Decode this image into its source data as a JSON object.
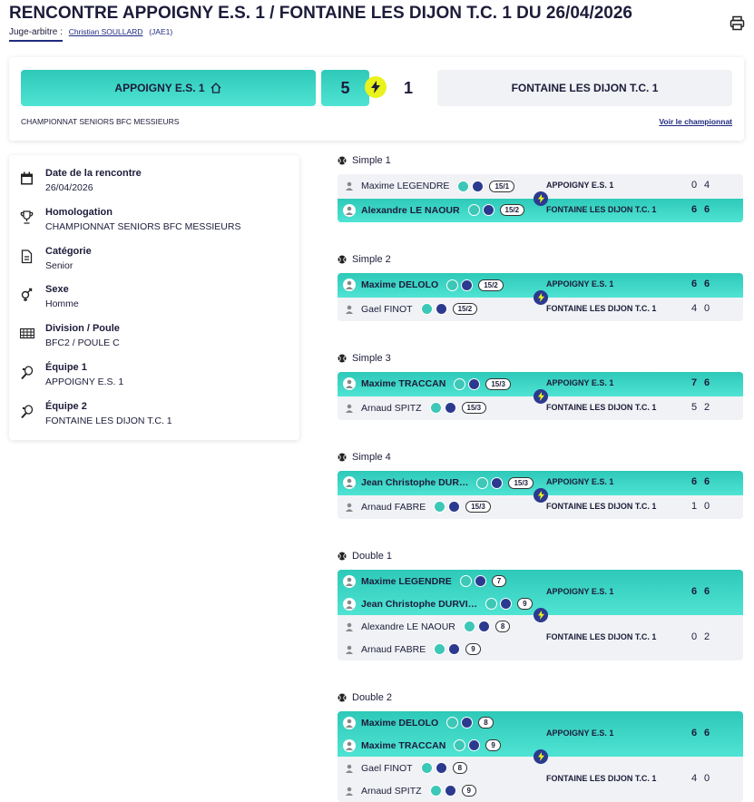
{
  "header": {
    "title": "RENCONTRE APPOIGNY E.S. 1 / FONTAINE LES DIJON T.C. 1 DU 26/04/2026",
    "referee_label": "Juge-arbitre :",
    "referee_name": "Christian SOULLARD",
    "referee_grade": "(JAE1)"
  },
  "scoreboard": {
    "home_team": "APPOIGNY E.S. 1",
    "home_score": 5,
    "away_score": 1,
    "away_team": "FONTAINE LES DIJON T.C. 1",
    "competition": "CHAMPIONNAT SENIORS BFC MESSIEURS",
    "link": "Voir le championnat"
  },
  "info": [
    {
      "label": "Date de la rencontre",
      "value": "26/04/2026"
    },
    {
      "label": "Homologation",
      "value": "CHAMPIONNAT SENIORS BFC MESSIEURS"
    },
    {
      "label": "Catégorie",
      "value": "Senior"
    },
    {
      "label": "Sexe",
      "value": "Homme"
    },
    {
      "label": "Division / Poule",
      "value": "BFC2 / POULE C"
    },
    {
      "label": "Équipe 1",
      "value": "APPOIGNY E.S. 1"
    },
    {
      "label": "Équipe 2",
      "value": "FONTAINE LES DIJON T.C. 1"
    }
  ],
  "matches": [
    {
      "title": "Simple 1",
      "teams": [
        {
          "name": "APPOIGNY E.S. 1",
          "winner": false,
          "players": [
            {
              "name": "Maxime LEGENDRE",
              "rank": "15/1"
            }
          ],
          "sets": [
            0,
            4
          ]
        },
        {
          "name": "FONTAINE LES DIJON T.C. 1",
          "winner": true,
          "players": [
            {
              "name": "Alexandre LE NAOUR",
              "rank": "15/2"
            }
          ],
          "sets": [
            6,
            6
          ]
        }
      ]
    },
    {
      "title": "Simple 2",
      "teams": [
        {
          "name": "APPOIGNY E.S. 1",
          "winner": true,
          "players": [
            {
              "name": "Maxime DELOLO",
              "rank": "15/2"
            }
          ],
          "sets": [
            6,
            6
          ]
        },
        {
          "name": "FONTAINE LES DIJON T.C. 1",
          "winner": false,
          "players": [
            {
              "name": "Gael FINOT",
              "rank": "15/2"
            }
          ],
          "sets": [
            4,
            0
          ]
        }
      ]
    },
    {
      "title": "Simple 3",
      "teams": [
        {
          "name": "APPOIGNY E.S. 1",
          "winner": true,
          "players": [
            {
              "name": "Maxime TRACCAN",
              "rank": "15/3"
            }
          ],
          "sets": [
            7,
            6
          ]
        },
        {
          "name": "FONTAINE LES DIJON T.C. 1",
          "winner": false,
          "players": [
            {
              "name": "Arnaud SPITZ",
              "rank": "15/3"
            }
          ],
          "sets": [
            5,
            2
          ]
        }
      ]
    },
    {
      "title": "Simple 4",
      "teams": [
        {
          "name": "APPOIGNY E.S. 1",
          "winner": true,
          "players": [
            {
              "name": "Jean Christophe DUR…",
              "rank": "15/3"
            }
          ],
          "sets": [
            6,
            6
          ]
        },
        {
          "name": "FONTAINE LES DIJON T.C. 1",
          "winner": false,
          "players": [
            {
              "name": "Arnaud FABRE",
              "rank": "15/3"
            }
          ],
          "sets": [
            1,
            0
          ]
        }
      ]
    },
    {
      "title": "Double 1",
      "teams": [
        {
          "name": "APPOIGNY E.S. 1",
          "winner": true,
          "players": [
            {
              "name": "Maxime LEGENDRE",
              "rank": "7"
            },
            {
              "name": "Jean Christophe DURVI…",
              "rank": "9"
            }
          ],
          "sets": [
            6,
            6
          ]
        },
        {
          "name": "FONTAINE LES DIJON T.C. 1",
          "winner": false,
          "players": [
            {
              "name": "Alexandre LE NAOUR",
              "rank": "8"
            },
            {
              "name": "Arnaud FABRE",
              "rank": "9"
            }
          ],
          "sets": [
            0,
            2
          ]
        }
      ]
    },
    {
      "title": "Double 2",
      "teams": [
        {
          "name": "APPOIGNY E.S. 1",
          "winner": true,
          "players": [
            {
              "name": "Maxime DELOLO",
              "rank": "8"
            },
            {
              "name": "Maxime TRACCAN",
              "rank": "9"
            }
          ],
          "sets": [
            6,
            6
          ]
        },
        {
          "name": "FONTAINE LES DIJON T.C. 1",
          "winner": false,
          "players": [
            {
              "name": "Gael FINOT",
              "rank": "8"
            },
            {
              "name": "Arnaud SPITZ",
              "rank": "9"
            }
          ],
          "sets": [
            4,
            0
          ]
        }
      ]
    }
  ]
}
